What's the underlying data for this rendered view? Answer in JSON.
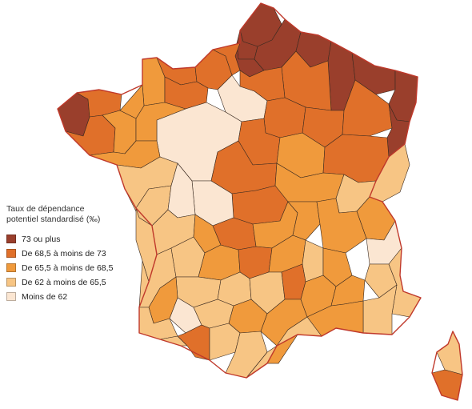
{
  "legend": {
    "title_line1": "Taux de dépendance",
    "title_line2": "potentiel standardisé (‰)",
    "classes": [
      {
        "label": "73 ou plus",
        "color": "#9a3f2c"
      },
      {
        "label": "De 68,5 à moins de 73",
        "color": "#e0702a"
      },
      {
        "label": "De 65,5 à moins de 68,5",
        "color": "#f09a3c"
      },
      {
        "label": "De 62 à moins de 65,5",
        "color": "#f7c584"
      },
      {
        "label": "Moins de 62",
        "color": "#fbe6d2"
      }
    ]
  },
  "regions": [
    {
      "name": "nord",
      "class": 0
    },
    {
      "name": "pas-de-calais",
      "class": 0
    },
    {
      "name": "somme",
      "class": 0
    },
    {
      "name": "aisne",
      "class": 0
    },
    {
      "name": "ardennes",
      "class": 0
    },
    {
      "name": "meuse",
      "class": 0
    },
    {
      "name": "moselle",
      "class": 0
    },
    {
      "name": "bas-rhin",
      "class": 0
    },
    {
      "name": "marne",
      "class": 1
    },
    {
      "name": "finistere",
      "class": 0
    },
    {
      "name": "cotes-darmor",
      "class": 1
    },
    {
      "name": "morbihan",
      "class": 1
    },
    {
      "name": "ille-et-vilaine",
      "class": 2
    },
    {
      "name": "manche",
      "class": 2
    },
    {
      "name": "calvados",
      "class": 1
    },
    {
      "name": "orne",
      "class": 1
    },
    {
      "name": "eure",
      "class": 1
    },
    {
      "name": "seine-maritime",
      "class": 1
    },
    {
      "name": "oise",
      "class": 1
    },
    {
      "name": "ile-de-france",
      "class": 4
    },
    {
      "name": "loiret-touraine",
      "class": 4
    },
    {
      "name": "sarthe",
      "class": 2
    },
    {
      "name": "mayenne",
      "class": 2
    },
    {
      "name": "loire-atlantique",
      "class": 2
    },
    {
      "name": "maine-et-loire",
      "class": 3
    },
    {
      "name": "vendee",
      "class": 3
    },
    {
      "name": "aube",
      "class": 1
    },
    {
      "name": "haute-marne",
      "class": 1
    },
    {
      "name": "vosges",
      "class": 1
    },
    {
      "name": "haut-rhin",
      "class": 0
    },
    {
      "name": "yonne",
      "class": 1
    },
    {
      "name": "cote-dor",
      "class": 2
    },
    {
      "name": "doubs-jura",
      "class": 1
    },
    {
      "name": "nievre",
      "class": 1
    },
    {
      "name": "saone-et-loire",
      "class": 2
    },
    {
      "name": "ain",
      "class": 3
    },
    {
      "name": "savoie",
      "class": 2
    },
    {
      "name": "haute-savoie",
      "class": 3
    },
    {
      "name": "allier",
      "class": 1
    },
    {
      "name": "creuse-cher",
      "class": 4
    },
    {
      "name": "indre",
      "class": 4
    },
    {
      "name": "vienne",
      "class": 3
    },
    {
      "name": "deux-sevres",
      "class": 3
    },
    {
      "name": "charente-maritime",
      "class": 3
    },
    {
      "name": "charente",
      "class": 3
    },
    {
      "name": "haute-vienne",
      "class": 2
    },
    {
      "name": "correze",
      "class": 2
    },
    {
      "name": "puy-de-dome",
      "class": 1
    },
    {
      "name": "loire",
      "class": 2
    },
    {
      "name": "rhone",
      "class": 2
    },
    {
      "name": "isere",
      "class": 2
    },
    {
      "name": "hautes-alpes",
      "class": 4
    },
    {
      "name": "cantal",
      "class": 1
    },
    {
      "name": "haute-loire",
      "class": 2
    },
    {
      "name": "ardeche",
      "class": 3
    },
    {
      "name": "drome",
      "class": 2
    },
    {
      "name": "dordogne",
      "class": 3
    },
    {
      "name": "lot",
      "class": 3
    },
    {
      "name": "aveyron",
      "class": 3
    },
    {
      "name": "lozere",
      "class": 1
    },
    {
      "name": "gironde",
      "class": 2
    },
    {
      "name": "landes",
      "class": 3
    },
    {
      "name": "lot-et-garonne",
      "class": 4
    },
    {
      "name": "tarn-et-garonne",
      "class": 3
    },
    {
      "name": "tarn",
      "class": 2
    },
    {
      "name": "herault",
      "class": 2
    },
    {
      "name": "gard",
      "class": 2
    },
    {
      "name": "vaucluse",
      "class": 2
    },
    {
      "name": "alpes-hp",
      "class": 3
    },
    {
      "name": "alpes-maritimes",
      "class": 3
    },
    {
      "name": "var",
      "class": 3
    },
    {
      "name": "bouches-du-rhone",
      "class": 2
    },
    {
      "name": "pyrenees-atlantiques",
      "class": 3
    },
    {
      "name": "hautes-pyrenees",
      "class": 1
    },
    {
      "name": "gers",
      "class": 3
    },
    {
      "name": "haute-garonne",
      "class": 3
    },
    {
      "name": "ariege",
      "class": 3
    },
    {
      "name": "aude",
      "class": 3
    },
    {
      "name": "pyrenees-orientales",
      "class": 2
    },
    {
      "name": "haute-corse",
      "class": 3
    },
    {
      "name": "corse-du-sud",
      "class": 1
    }
  ]
}
